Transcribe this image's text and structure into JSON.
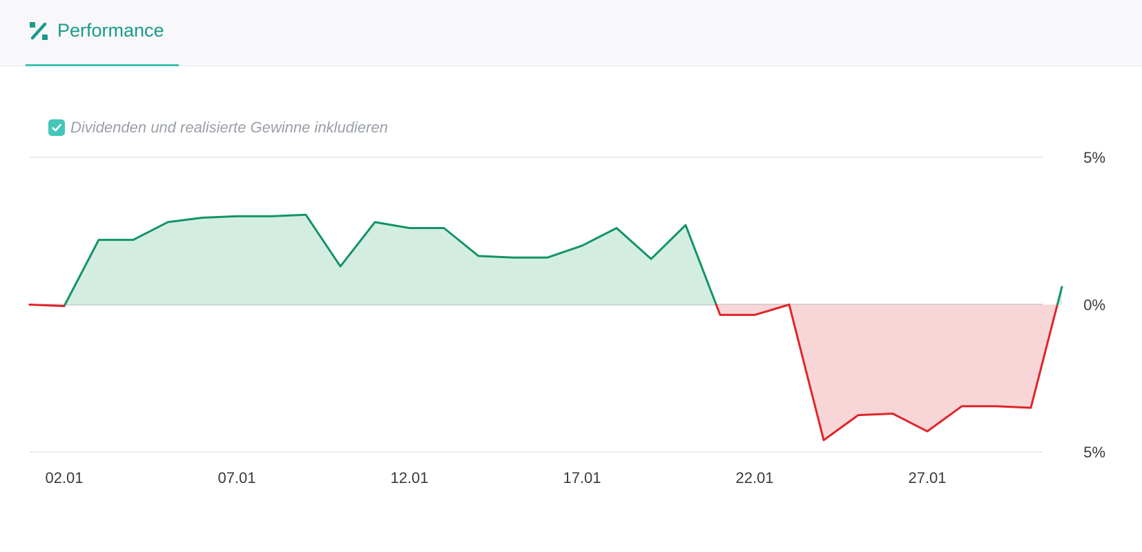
{
  "header": {
    "tab_label": "Performance",
    "tab_icon": "percent-icon",
    "accent_color": "#1a9a8b"
  },
  "options": {
    "include_dividends_label": "Dividenden und realisierte Gewinne inkludieren",
    "include_dividends_checked": true
  },
  "chart_data": {
    "type": "area",
    "x_tick_labels": [
      "02.01",
      "07.01",
      "12.01",
      "17.01",
      "22.01",
      "27.01"
    ],
    "x_ticks": [
      2,
      7,
      12,
      17,
      22,
      27
    ],
    "x": [
      1,
      2,
      3,
      4,
      5,
      6,
      7,
      8,
      9,
      10,
      11,
      12,
      13,
      14,
      15,
      16,
      17,
      18,
      19,
      20,
      21,
      22,
      23,
      24,
      25,
      26,
      27,
      28,
      29,
      30,
      30.9
    ],
    "y": [
      0.0,
      -0.05,
      2.2,
      2.2,
      2.8,
      2.95,
      3.0,
      3.0,
      3.05,
      1.3,
      2.8,
      2.6,
      2.6,
      1.65,
      1.6,
      1.6,
      2.0,
      2.6,
      1.55,
      2.7,
      -0.35,
      -0.35,
      0.0,
      -4.6,
      -3.75,
      -3.7,
      -4.3,
      -3.45,
      -3.45,
      -3.5,
      0.6
    ],
    "y_tick_labels": [
      "5%",
      "0%",
      "5%"
    ],
    "ylim": [
      -5,
      5
    ],
    "positive_color": "#129464",
    "positive_fill": "#d4ede2",
    "negative_color": "#e0242a",
    "negative_fill": "#f8d6d7",
    "grid": true
  }
}
